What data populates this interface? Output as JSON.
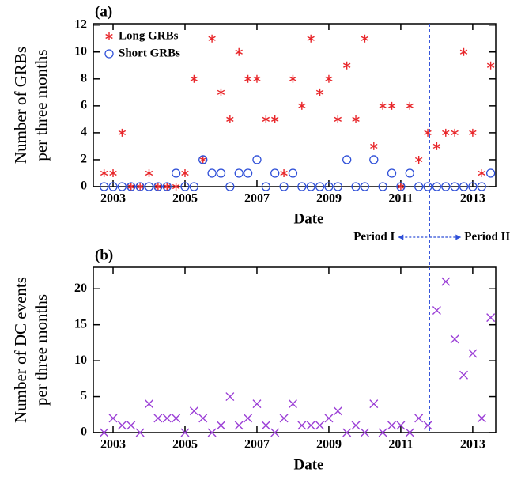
{
  "chart_data": [
    {
      "type": "scatter",
      "panel_label": "(a)",
      "xlabel": "Date",
      "ylabel": [
        "Number of GRBs",
        "per three months"
      ],
      "xlim": [
        2002.45,
        2013.64
      ],
      "xticks": [
        2003,
        2005,
        2007,
        2009,
        2011,
        2013
      ],
      "ylim": [
        0,
        12.1
      ],
      "yticks": [
        0,
        2,
        4,
        6,
        8,
        10,
        12
      ],
      "legend": "upper left",
      "x": [
        2002.75,
        2003,
        2003.25,
        2003.5,
        2003.75,
        2004,
        2004.25,
        2004.5,
        2004.75,
        2005,
        2005.25,
        2005.5,
        2005.75,
        2006,
        2006.25,
        2006.5,
        2006.75,
        2007,
        2007.25,
        2007.5,
        2007.75,
        2008,
        2008.25,
        2008.5,
        2008.75,
        2009,
        2009.25,
        2009.5,
        2009.75,
        2010,
        2010.25,
        2010.5,
        2010.75,
        2011,
        2011.25,
        2011.5,
        2011.75,
        2012,
        2012.25,
        2012.5,
        2012.75,
        2013,
        2013.25,
        2013.5
      ],
      "series": [
        {
          "name": "Long GRBs",
          "color": "#e8262a",
          "marker": "asterisk",
          "values": [
            1,
            1,
            4,
            0,
            0,
            1,
            0,
            0,
            0,
            1,
            8,
            2,
            11,
            7,
            5,
            10,
            8,
            8,
            5,
            5,
            1,
            8,
            6,
            11,
            7,
            8,
            5,
            9,
            5,
            11,
            3,
            6,
            6,
            0,
            6,
            2,
            4,
            3,
            4,
            4,
            10,
            4,
            1,
            9
          ]
        },
        {
          "name": "Short GRBs",
          "color": "#2e4fd8",
          "marker": "circle",
          "values": [
            0,
            0,
            0,
            0,
            0,
            0,
            0,
            0,
            1,
            0,
            0,
            2,
            1,
            1,
            0,
            1,
            1,
            2,
            0,
            1,
            0,
            1,
            0,
            0,
            0,
            0,
            0,
            2,
            0,
            0,
            2,
            0,
            1,
            0,
            1,
            0,
            0,
            0,
            0,
            0,
            0,
            0,
            0,
            1
          ]
        }
      ],
      "period_boundary": 2011.8,
      "period_labels": [
        "Period I",
        "Period II"
      ],
      "boundary_color": "#2e4fd8"
    },
    {
      "type": "scatter",
      "panel_label": "(b)",
      "xlabel": "Date",
      "ylabel": [
        "Number of  DC events",
        "per three months"
      ],
      "xlim": [
        2002.45,
        2013.64
      ],
      "xticks": [
        2003,
        2005,
        2007,
        2009,
        2011,
        2013
      ],
      "ylim": [
        0,
        23
      ],
      "yticks": [
        0,
        5,
        10,
        15,
        20
      ],
      "x": [
        2002.75,
        2003,
        2003.25,
        2003.5,
        2003.75,
        2004,
        2004.25,
        2004.5,
        2004.75,
        2005,
        2005.25,
        2005.5,
        2005.75,
        2006,
        2006.25,
        2006.5,
        2006.75,
        2007,
        2007.25,
        2007.5,
        2007.75,
        2008,
        2008.25,
        2008.5,
        2008.75,
        2009,
        2009.25,
        2009.5,
        2009.75,
        2010,
        2010.25,
        2010.5,
        2010.75,
        2011,
        2011.25,
        2011.5,
        2011.75,
        2012,
        2012.25,
        2012.5,
        2012.75,
        2013,
        2013.25,
        2013.5
      ],
      "series": [
        {
          "color": "#9b3fd6",
          "marker": "cross",
          "values": [
            0,
            2,
            1,
            1,
            0,
            4,
            2,
            2,
            2,
            0,
            3,
            2,
            0,
            1,
            5,
            1,
            2,
            4,
            1,
            0,
            2,
            4,
            1,
            1,
            1,
            2,
            3,
            0,
            1,
            0,
            4,
            0,
            1,
            1,
            0,
            2,
            1,
            17,
            21,
            13,
            8,
            11,
            2,
            16
          ]
        }
      ]
    }
  ]
}
